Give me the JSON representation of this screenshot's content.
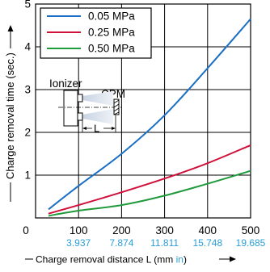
{
  "chart_data": {
    "type": "line",
    "title": "",
    "xlabel": "Charge removal distance L (mm in)",
    "xlabel_main": "Charge removal distance L (mm ",
    "xlabel_unit_in": "in",
    "xlabel_close": ")",
    "ylabel": "Charge removal time (sec.)",
    "xlim": [
      0,
      500
    ],
    "ylim": [
      0,
      5
    ],
    "x_ticks": [
      "0",
      "100",
      "200",
      "300",
      "400",
      "500"
    ],
    "x_ticks_in": [
      "3.937",
      "7.874",
      "11.811",
      "15.748",
      "19.685"
    ],
    "y_ticks": [
      "0",
      "1",
      "2",
      "3",
      "4",
      "5"
    ],
    "grid": true,
    "legend_position": "top-left",
    "series": [
      {
        "name": "0.05 MPa",
        "color": "#1a6fc4",
        "points": [
          [
            30,
            0.2
          ],
          [
            100,
            0.75
          ],
          [
            200,
            1.5
          ],
          [
            300,
            2.4
          ],
          [
            400,
            3.5
          ],
          [
            500,
            4.65
          ]
        ]
      },
      {
        "name": "0.25 MPa",
        "color": "#d0103a",
        "points": [
          [
            30,
            0.1
          ],
          [
            100,
            0.3
          ],
          [
            200,
            0.6
          ],
          [
            300,
            0.92
          ],
          [
            400,
            1.28
          ],
          [
            500,
            1.7
          ]
        ]
      },
      {
        "name": "0.50 MPa",
        "color": "#1f9a3c",
        "points": [
          [
            30,
            0.05
          ],
          [
            100,
            0.17
          ],
          [
            200,
            0.3
          ],
          [
            300,
            0.52
          ],
          [
            400,
            0.8
          ],
          [
            500,
            1.1
          ]
        ]
      }
    ],
    "inset": {
      "ionizer_label": "Ionizer",
      "cpm_label": "CPM",
      "distance_label": "L"
    },
    "colors": {
      "inch_values": "#2a9fd8",
      "axis": "#000000"
    }
  }
}
